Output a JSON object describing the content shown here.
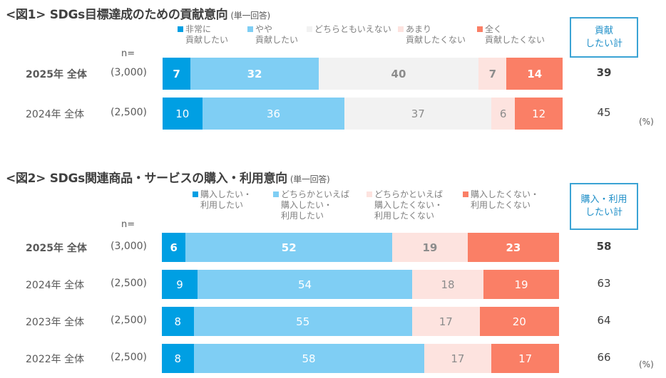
{
  "chart_data": [
    {
      "type": "bar",
      "orientation": "horizontal-stacked-100",
      "title": "<図1> SDGs目標達成のための貢献意向",
      "subtitle": "(単一回答)",
      "n_label": "n=",
      "unit_label": "(%)",
      "total_label": "貢献\nしたい計",
      "legend": [
        {
          "name": "非常に\n貢献したい",
          "color": "#009fe3",
          "text_color": "#ffffff"
        },
        {
          "name": "やや\n貢献したい",
          "color": "#7fcef4",
          "text_color": "#ffffff"
        },
        {
          "name": "どちらともいえない",
          "color": "#f2f2f2",
          "text_color": "#8c8c8c"
        },
        {
          "name": "あまり\n貢献したくない",
          "color": "#fde3df",
          "text_color": "#8c8c8c"
        },
        {
          "name": "全く\n貢献したくない",
          "color": "#fa7f66",
          "text_color": "#ffffff"
        }
      ],
      "rows": [
        {
          "label": "2025年 全体",
          "n": "(3,000)",
          "values": [
            7,
            32,
            40,
            7,
            14
          ],
          "total": 39,
          "bold": true
        },
        {
          "label": "2024年 全体",
          "n": "(2,500)",
          "values": [
            10,
            36,
            37,
            6,
            12
          ],
          "total": 45,
          "bold": false
        }
      ]
    },
    {
      "type": "bar",
      "orientation": "horizontal-stacked-100",
      "title": "<図2> SDGs関連商品・サービスの購入・利用意向",
      "subtitle": "(単一回答)",
      "n_label": "n=",
      "unit_label": "(%)",
      "total_label": "購入・利用\nしたい計",
      "legend": [
        {
          "name": "購入したい・\n利用したい",
          "color": "#009fe3",
          "text_color": "#ffffff"
        },
        {
          "name": "どちらかといえば\n購入したい・\n利用したい",
          "color": "#7fcef4",
          "text_color": "#ffffff"
        },
        {
          "name": "どちらかといえば\n購入したくない・\n利用したくない",
          "color": "#fde3df",
          "text_color": "#8c8c8c"
        },
        {
          "name": "購入したくない・\n利用したくない",
          "color": "#fa7f66",
          "text_color": "#ffffff"
        }
      ],
      "rows": [
        {
          "label": "2025年 全体",
          "n": "(3,000)",
          "values": [
            6,
            52,
            19,
            23
          ],
          "total": 58,
          "bold": true
        },
        {
          "label": "2024年 全体",
          "n": "(2,500)",
          "values": [
            9,
            54,
            18,
            19
          ],
          "total": 63,
          "bold": false
        },
        {
          "label": "2023年 全体",
          "n": "(2,500)",
          "values": [
            8,
            55,
            17,
            20
          ],
          "total": 64,
          "bold": false
        },
        {
          "label": "2022年 全体",
          "n": "(2,500)",
          "values": [
            8,
            58,
            17,
            17
          ],
          "total": 66,
          "bold": false
        }
      ]
    }
  ]
}
